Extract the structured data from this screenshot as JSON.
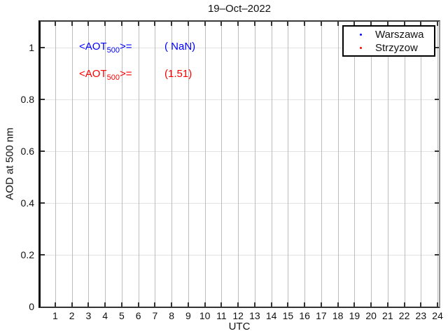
{
  "figure": {
    "title": "19–Oct–2022"
  },
  "axes": {
    "xlabel": "UTC",
    "ylabel": "AOD at 500 nm",
    "xlim": [
      0.12,
      24.08
    ],
    "ylim": [
      0,
      1.1
    ],
    "x_ticks": [
      1,
      2,
      3,
      4,
      5,
      6,
      7,
      8,
      9,
      10,
      11,
      12,
      13,
      14,
      15,
      16,
      17,
      18,
      19,
      20,
      21,
      22,
      23,
      24
    ],
    "y_ticks": [
      {
        "value": 0,
        "label": "0"
      },
      {
        "value": 0.2,
        "label": "0.2"
      },
      {
        "value": 0.4,
        "label": "0.4"
      },
      {
        "value": 0.6,
        "label": "0.6"
      },
      {
        "value": 0.8,
        "label": "0.8"
      },
      {
        "value": 1,
        "label": "1"
      }
    ]
  },
  "annotations": [
    {
      "prefix": "<AOT",
      "sub": "500",
      "suffix": ">=",
      "value": "( NaN)",
      "color": "#0000ff"
    },
    {
      "prefix": "<AOT",
      "sub": "500",
      "suffix": ">=",
      "value": "(1.51)",
      "color": "#ff0000"
    }
  ],
  "legend": {
    "entries": [
      {
        "label": "Warszawa",
        "color": "#0000ff"
      },
      {
        "label": "Strzyzow",
        "color": "#ff0000"
      }
    ]
  },
  "colors": {
    "grid_vertical": "#bdbdbd",
    "grid_horizontal": "#e2e2e2",
    "axis": "#333333",
    "background": "#ffffff"
  },
  "chart_data": {
    "type": "scatter",
    "title": "19–Oct–2022",
    "xlabel": "UTC",
    "ylabel": "AOD at 500 nm",
    "xlim": [
      0.12,
      24.08
    ],
    "ylim": [
      0,
      1.1
    ],
    "x_ticks": [
      1,
      2,
      3,
      4,
      5,
      6,
      7,
      8,
      9,
      10,
      11,
      12,
      13,
      14,
      15,
      16,
      17,
      18,
      19,
      20,
      21,
      22,
      23,
      24
    ],
    "y_ticks": [
      0,
      0.2,
      0.4,
      0.6,
      0.8,
      1
    ],
    "grid": true,
    "legend_position": "top-right-inside",
    "series": [
      {
        "name": "Warszawa",
        "color": "#0000ff",
        "marker": "point",
        "points": [],
        "mean_aot_500": "NaN"
      },
      {
        "name": "Strzyzow",
        "color": "#ff0000",
        "marker": "point",
        "points": [],
        "mean_aot_500": 1.51
      }
    ]
  }
}
